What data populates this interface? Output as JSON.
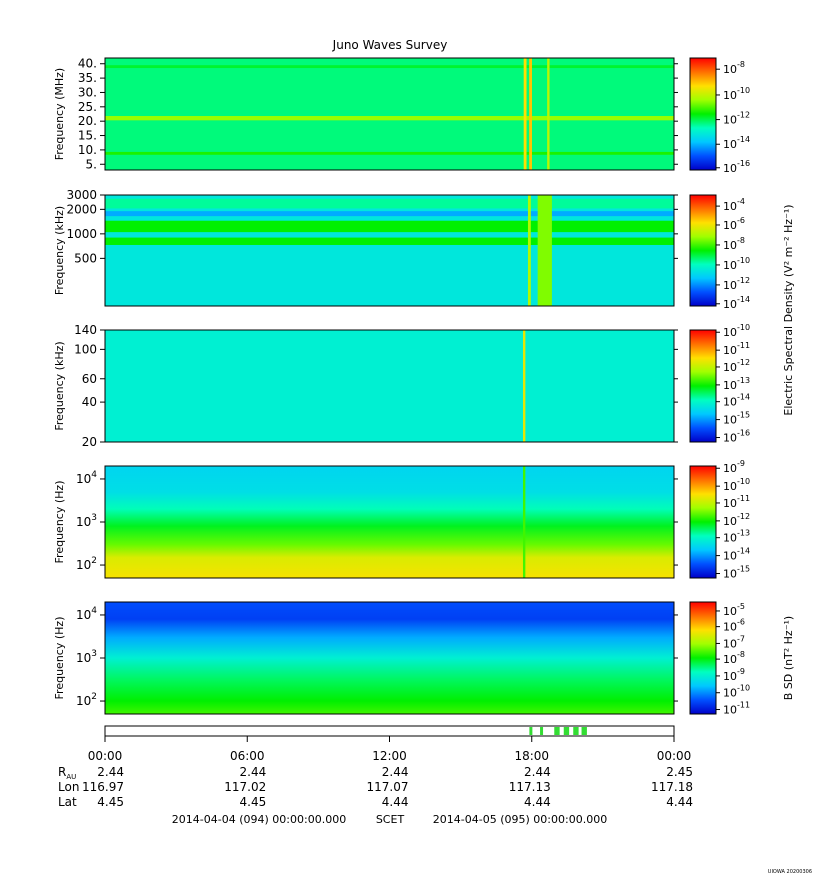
{
  "chart_data": {
    "type": "heatmap",
    "title": "Juno Waves Survey",
    "colormap": [
      "#0000c8",
      "#0050ff",
      "#00c8ff",
      "#00ffc0",
      "#00f000",
      "#a0ff00",
      "#ffe000",
      "#ff7000",
      "#ff0000"
    ],
    "panels": [
      {
        "ylabel": "Frequency (MHz)",
        "yscale": "linear",
        "ylim": [
          3,
          42
        ],
        "yticks": [
          {
            "v": 5,
            "l": "5."
          },
          {
            "v": 10,
            "l": "10."
          },
          {
            "v": 15,
            "l": "15."
          },
          {
            "v": 20,
            "l": "20."
          },
          {
            "v": 25,
            "l": "25."
          },
          {
            "v": 30,
            "l": "30."
          },
          {
            "v": 35,
            "l": "35."
          },
          {
            "v": 40,
            "l": "40."
          }
        ],
        "background_level": 0.42,
        "bands": [
          {
            "y0": 20.3,
            "y1": 21.8,
            "level": 0.62
          },
          {
            "y0": 8.3,
            "y1": 9.3,
            "level": 0.52
          },
          {
            "y0": 38.5,
            "y1": 39.5,
            "level": 0.47
          }
        ],
        "spikes": [
          {
            "t": 17.72,
            "w": 0.12,
            "level": 0.75
          },
          {
            "t": 17.95,
            "w": 0.12,
            "level": 0.78
          },
          {
            "t": 18.7,
            "w": 0.1,
            "level": 0.66
          }
        ],
        "colorbar": {
          "label": "",
          "ticks": [
            {
              "exp": "-8",
              "pos": 0.1
            },
            {
              "exp": "-10",
              "pos": 0.33
            },
            {
              "exp": "-12",
              "pos": 0.55
            },
            {
              "exp": "-14",
              "pos": 0.77
            },
            {
              "exp": "-16",
              "pos": 0.98
            }
          ]
        }
      },
      {
        "ylabel": "Frequency (kHz)",
        "yscale": "log",
        "ylim": [
          130,
          3000
        ],
        "yticks": [
          {
            "v": 500,
            "l": "500"
          },
          {
            "v": 1000,
            "l": "1000"
          },
          {
            "v": 2000,
            "l": "2000"
          },
          {
            "v": 3000,
            "l": "3000"
          }
        ],
        "background_level": 0.32,
        "bands": [
          {
            "y0": 1050,
            "y1": 1450,
            "level": 0.5
          },
          {
            "y0": 730,
            "y1": 900,
            "level": 0.5
          },
          {
            "y0": 1650,
            "y1": 1900,
            "level": 0.22
          },
          {
            "y0": 2050,
            "y1": 2700,
            "level": 0.4
          }
        ],
        "spikes": [
          {
            "t": 17.9,
            "w": 0.12,
            "level": 0.65
          },
          {
            "t": 18.55,
            "w": 0.6,
            "level": 0.6
          }
        ],
        "colorbar": {
          "label": "Electric Spectral Density (V² m⁻² Hz⁻¹)",
          "ticks": [
            {
              "exp": "-4",
              "pos": 0.1
            },
            {
              "exp": "-6",
              "pos": 0.27
            },
            {
              "exp": "-8",
              "pos": 0.45
            },
            {
              "exp": "-10",
              "pos": 0.63
            },
            {
              "exp": "-12",
              "pos": 0.81
            },
            {
              "exp": "-14",
              "pos": 0.98
            }
          ]
        }
      },
      {
        "ylabel": "Frequency (kHz)",
        "yscale": "log",
        "ylim": [
          20,
          140
        ],
        "yticks": [
          {
            "v": 20,
            "l": "20"
          },
          {
            "v": 40,
            "l": "40"
          },
          {
            "v": 60,
            "l": "60"
          },
          {
            "v": 100,
            "l": "100"
          },
          {
            "v": 140,
            "l": "140"
          }
        ],
        "background_level": 0.34,
        "bands": [],
        "spikes": [
          {
            "t": 17.68,
            "w": 0.1,
            "level": 0.72
          }
        ],
        "colorbar": {
          "label": "",
          "ticks": [
            {
              "exp": "-10",
              "pos": 0.02
            },
            {
              "exp": "-11",
              "pos": 0.18
            },
            {
              "exp": "-12",
              "pos": 0.33
            },
            {
              "exp": "-13",
              "pos": 0.49
            },
            {
              "exp": "-14",
              "pos": 0.64
            },
            {
              "exp": "-15",
              "pos": 0.8
            },
            {
              "exp": "-16",
              "pos": 0.96
            }
          ]
        }
      },
      {
        "ylabel": "Frequency (Hz)",
        "yscale": "log",
        "ylim": [
          50,
          20000
        ],
        "yticks": [
          {
            "v": 100,
            "l": "10",
            "e": "2"
          },
          {
            "v": 1000,
            "l": "10",
            "e": "3"
          },
          {
            "v": 10000,
            "l": "10",
            "e": "4"
          }
        ],
        "gradient": [
          {
            "y": 20000,
            "level": 0.28
          },
          {
            "y": 5000,
            "level": 0.3
          },
          {
            "y": 2000,
            "level": 0.38
          },
          {
            "y": 800,
            "level": 0.48
          },
          {
            "y": 300,
            "level": 0.58
          },
          {
            "y": 150,
            "level": 0.7
          },
          {
            "y": 50,
            "level": 0.74
          }
        ],
        "bands": [],
        "spikes": [
          {
            "t": 17.68,
            "w": 0.1,
            "level": 0.55
          }
        ],
        "colorbar": {
          "label": "",
          "ticks": [
            {
              "exp": "-9",
              "pos": 0.02
            },
            {
              "exp": "-10",
              "pos": 0.18
            },
            {
              "exp": "-11",
              "pos": 0.33
            },
            {
              "exp": "-12",
              "pos": 0.49
            },
            {
              "exp": "-13",
              "pos": 0.64
            },
            {
              "exp": "-14",
              "pos": 0.8
            },
            {
              "exp": "-15",
              "pos": 0.96
            }
          ]
        }
      },
      {
        "ylabel": "Frequency (Hz)",
        "yscale": "log",
        "ylim": [
          50,
          20000
        ],
        "yticks": [
          {
            "v": 100,
            "l": "10",
            "e": "2"
          },
          {
            "v": 1000,
            "l": "10",
            "e": "3"
          },
          {
            "v": 10000,
            "l": "10",
            "e": "4"
          }
        ],
        "gradient": [
          {
            "y": 20000,
            "level": 0.12
          },
          {
            "y": 8000,
            "level": 0.1
          },
          {
            "y": 3000,
            "level": 0.22
          },
          {
            "y": 1000,
            "level": 0.34
          },
          {
            "y": 300,
            "level": 0.44
          },
          {
            "y": 100,
            "level": 0.5
          },
          {
            "y": 50,
            "level": 0.55
          }
        ],
        "bands": [],
        "spikes": [],
        "colorbar": {
          "label": "B SD (nT² Hz⁻¹)",
          "ticks": [
            {
              "exp": "-5",
              "pos": 0.08
            },
            {
              "exp": "-6",
              "pos": 0.22
            },
            {
              "exp": "-7",
              "pos": 0.37
            },
            {
              "exp": "-8",
              "pos": 0.51
            },
            {
              "exp": "-9",
              "pos": 0.66
            },
            {
              "exp": "-10",
              "pos": 0.81
            },
            {
              "exp": "-11",
              "pos": 0.96
            }
          ]
        }
      }
    ],
    "x": {
      "range_hours": [
        0,
        24
      ],
      "tick_hours": [
        0,
        6,
        12,
        18,
        24
      ],
      "tick_labels": [
        "00:00",
        "06:00",
        "12:00",
        "18:00",
        "00:00"
      ]
    },
    "mode_bar": {
      "marks_hours": [
        17.9,
        18.35,
        18.95,
        19.05,
        19.35,
        19.45,
        19.75,
        19.85,
        20.1,
        20.2
      ]
    },
    "ephemeris": {
      "rows": [
        {
          "label": "R",
          "label_sub": "AU",
          "values": [
            "2.44",
            "2.44",
            "2.44",
            "2.44",
            "2.45"
          ]
        },
        {
          "label": "Lon",
          "label_sub": "",
          "values": [
            "116.97",
            "117.02",
            "117.07",
            "117.13",
            "117.18"
          ]
        },
        {
          "label": "Lat",
          "label_sub": "",
          "values": [
            "4.45",
            "4.45",
            "4.44",
            "4.44",
            "4.44"
          ]
        }
      ]
    },
    "footer": {
      "start": "2014-04-04 (094) 00:00:00.000",
      "scet": "SCET",
      "end": "2014-04-05 (095) 00:00:00.000"
    },
    "credit": "UIOWA 20200306"
  }
}
